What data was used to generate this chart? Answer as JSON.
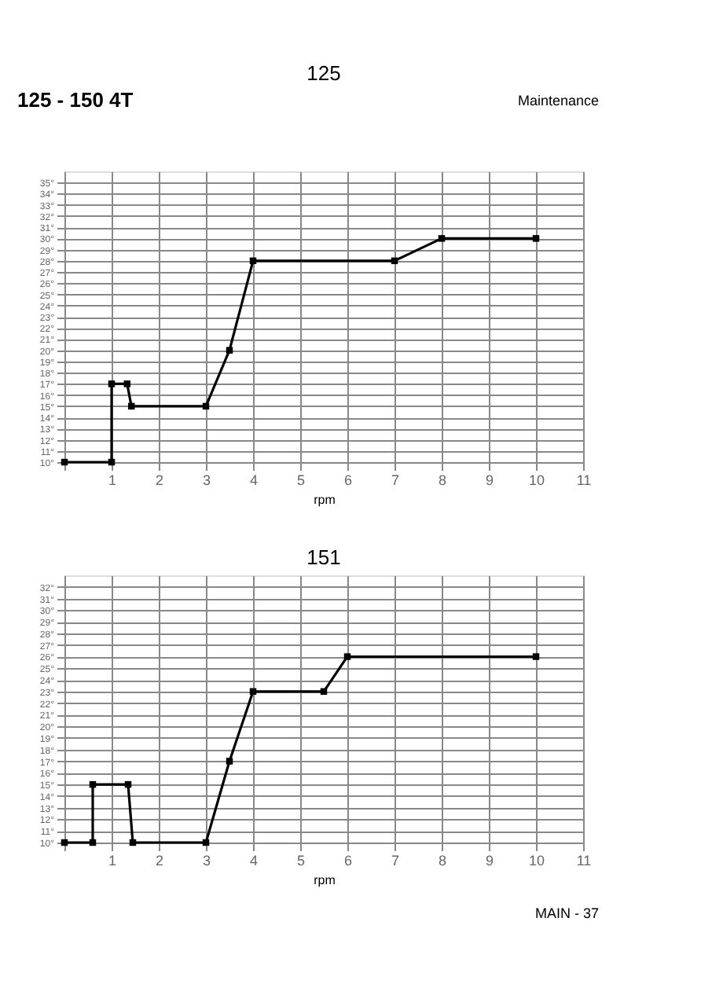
{
  "chart_data": [
    {
      "type": "line",
      "title": "125",
      "xlabel": "rpm",
      "annotations": [
        "125 - 150 4T",
        "Maintenance"
      ],
      "x": [
        0,
        1,
        1,
        1.33,
        1.42,
        3,
        3.5,
        4,
        7,
        8,
        10
      ],
      "series": [
        {
          "color": "#000000",
          "values": [
            10,
            10,
            17,
            17,
            15,
            15,
            20,
            28,
            28,
            30,
            30
          ]
        }
      ],
      "xlim": [
        0,
        11
      ],
      "ylim": [
        10,
        36
      ],
      "xticks": [
        {
          "value": 0,
          "label": null
        },
        1,
        2,
        3,
        4,
        5,
        6,
        7,
        8,
        9,
        {
          "value": 10,
          "label": "10"
        },
        {
          "value": 11,
          "label": "11"
        }
      ],
      "yticks": [
        {
          "value": 10,
          "label": "10°"
        },
        {
          "value": 11,
          "label": "11°"
        },
        {
          "value": 12,
          "label": "12°"
        },
        {
          "value": 13,
          "label": "13°"
        },
        {
          "value": 14,
          "label": "14°"
        },
        {
          "value": 15,
          "label": "15°"
        },
        {
          "value": 16,
          "label": "16°"
        },
        {
          "value": 17,
          "label": "17°"
        },
        {
          "value": 18,
          "label": "18°"
        },
        {
          "value": 19,
          "label": "19°"
        },
        {
          "value": 20,
          "label": "20°"
        },
        {
          "value": 21,
          "label": "21°"
        },
        {
          "value": 22,
          "label": "22°"
        },
        {
          "value": 23,
          "label": "23°"
        },
        {
          "value": 24,
          "label": "24°"
        },
        {
          "value": 25,
          "label": "25°"
        },
        {
          "value": 26,
          "label": "26°"
        },
        {
          "value": 27,
          "label": "27°"
        },
        {
          "value": 28,
          "label": "28°"
        },
        {
          "value": 29,
          "label": "29°"
        },
        {
          "value": 30,
          "label": "30°"
        },
        {
          "value": 31,
          "label": "31°"
        },
        {
          "value": 32,
          "label": "32°"
        },
        {
          "value": 33,
          "label": "33°"
        },
        {
          "value": 34,
          "label": "34°"
        },
        {
          "value": 35,
          "label": "35°"
        }
      ],
      "grid": true,
      "marker": "square",
      "line_style": "solid"
    },
    {
      "type": "line",
      "title": "151",
      "xlabel": "rpm",
      "annotations": [
        "MAIN - 37"
      ],
      "x": [
        0,
        0.6,
        0.6,
        1.35,
        1.45,
        3,
        3.5,
        4,
        5.5,
        6,
        10
      ],
      "series": [
        {
          "color": "#000000",
          "values": [
            10,
            10,
            15,
            15,
            10,
            10,
            17,
            23,
            23,
            26,
            26
          ]
        }
      ],
      "xlim": [
        0,
        11
      ],
      "ylim": [
        10,
        33
      ],
      "xticks": [
        {
          "value": 0,
          "label": null
        },
        1,
        2,
        3,
        4,
        5,
        6,
        7,
        8,
        9,
        {
          "value": 10,
          "label": "10"
        },
        {
          "value": 11,
          "label": "11"
        }
      ],
      "yticks": [
        {
          "value": 10,
          "label": "10°"
        },
        {
          "value": 11,
          "label": "11°"
        },
        {
          "value": 12,
          "label": "12°"
        },
        {
          "value": 13,
          "label": "13°"
        },
        {
          "value": 14,
          "label": "14°"
        },
        {
          "value": 15,
          "label": "15°"
        },
        {
          "value": 16,
          "label": "16°"
        },
        {
          "value": 17,
          "label": "17°"
        },
        {
          "value": 18,
          "label": "18°"
        },
        {
          "value": 19,
          "label": "19°"
        },
        {
          "value": 20,
          "label": "20°"
        },
        {
          "value": 21,
          "label": "21°"
        },
        {
          "value": 22,
          "label": "22°"
        },
        {
          "value": 23,
          "label": "23°"
        },
        {
          "value": 24,
          "label": "24°"
        },
        {
          "value": 25,
          "label": "25°"
        },
        {
          "value": 26,
          "label": "26°"
        },
        {
          "value": 27,
          "label": "27°"
        },
        {
          "value": 28,
          "label": "28°"
        },
        {
          "value": 29,
          "label": "29°"
        },
        {
          "value": 30,
          "label": "30°"
        },
        {
          "value": 31,
          "label": "31°"
        },
        {
          "value": 32,
          "label": "32°"
        }
      ],
      "grid": true,
      "marker": "square",
      "line_style": "solid"
    }
  ]
}
